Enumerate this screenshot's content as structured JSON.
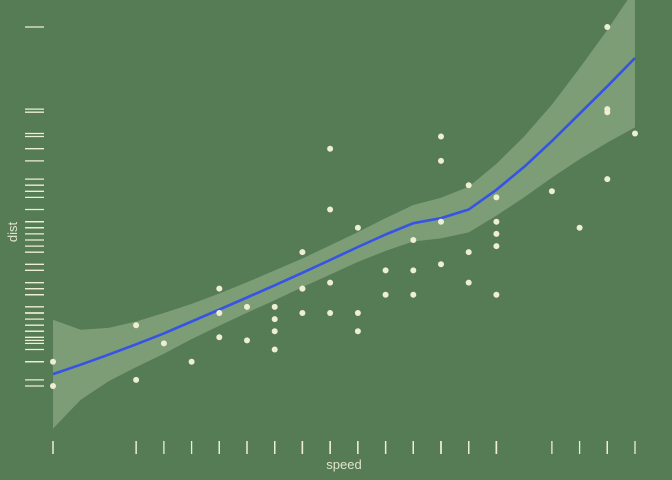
{
  "chart_data": {
    "type": "scatter",
    "title": "",
    "xlabel": "speed",
    "ylabel": "dist",
    "x": [
      4,
      4,
      7,
      7,
      8,
      9,
      10,
      10,
      10,
      11,
      11,
      12,
      12,
      12,
      12,
      13,
      13,
      13,
      13,
      14,
      14,
      14,
      14,
      15,
      15,
      15,
      16,
      16,
      17,
      17,
      17,
      18,
      18,
      18,
      18,
      19,
      19,
      19,
      20,
      20,
      20,
      20,
      20,
      22,
      23,
      24,
      24,
      24,
      24,
      25
    ],
    "y": [
      2,
      10,
      4,
      22,
      16,
      10,
      18,
      26,
      34,
      17,
      28,
      14,
      20,
      24,
      28,
      26,
      34,
      34,
      46,
      26,
      36,
      60,
      80,
      20,
      26,
      54,
      32,
      40,
      32,
      40,
      50,
      42,
      56,
      76,
      84,
      36,
      46,
      68,
      32,
      48,
      52,
      56,
      64,
      66,
      54,
      70,
      92,
      93,
      120,
      85
    ],
    "xlim": [
      4,
      25
    ],
    "ylim": [
      2,
      120
    ],
    "smooth": {
      "method": "loess",
      "x": [
        4,
        5,
        6,
        7,
        8,
        9,
        10,
        11,
        12,
        13,
        14,
        15,
        16,
        17,
        18,
        19,
        20,
        21,
        22,
        23,
        24,
        25
      ],
      "fit": [
        5.9,
        9.0,
        12.3,
        15.7,
        19.3,
        23.2,
        27.1,
        31.1,
        35.1,
        39.2,
        43.4,
        47.7,
        51.8,
        55.5,
        57.2,
        60.0,
        66.5,
        74.0,
        82.5,
        91.5,
        100.5,
        109.8
      ],
      "lower": [
        -12.0,
        -2.5,
        3.5,
        8.2,
        12.6,
        17.4,
        21.8,
        26.1,
        30.2,
        34.5,
        38.6,
        42.8,
        46.4,
        49.5,
        50.5,
        52.5,
        58.0,
        64.0,
        70.5,
        76.5,
        82.0,
        87.0
      ],
      "upper": [
        23.8,
        20.5,
        21.1,
        23.2,
        26.0,
        29.0,
        32.4,
        36.1,
        40.0,
        43.9,
        48.2,
        52.6,
        57.2,
        61.5,
        63.9,
        67.5,
        75.0,
        84.0,
        94.5,
        106.5,
        119.0,
        132.6
      ]
    },
    "rug": true,
    "grid": false,
    "legend": "none",
    "colors": {
      "background": "#557c55",
      "points": "#eeeed2",
      "rug": "#eeeed2",
      "line": "#3553e6",
      "ribbon": "#9fb892",
      "ribbon_opacity": 0.55,
      "text": "#e3e3d0"
    }
  }
}
